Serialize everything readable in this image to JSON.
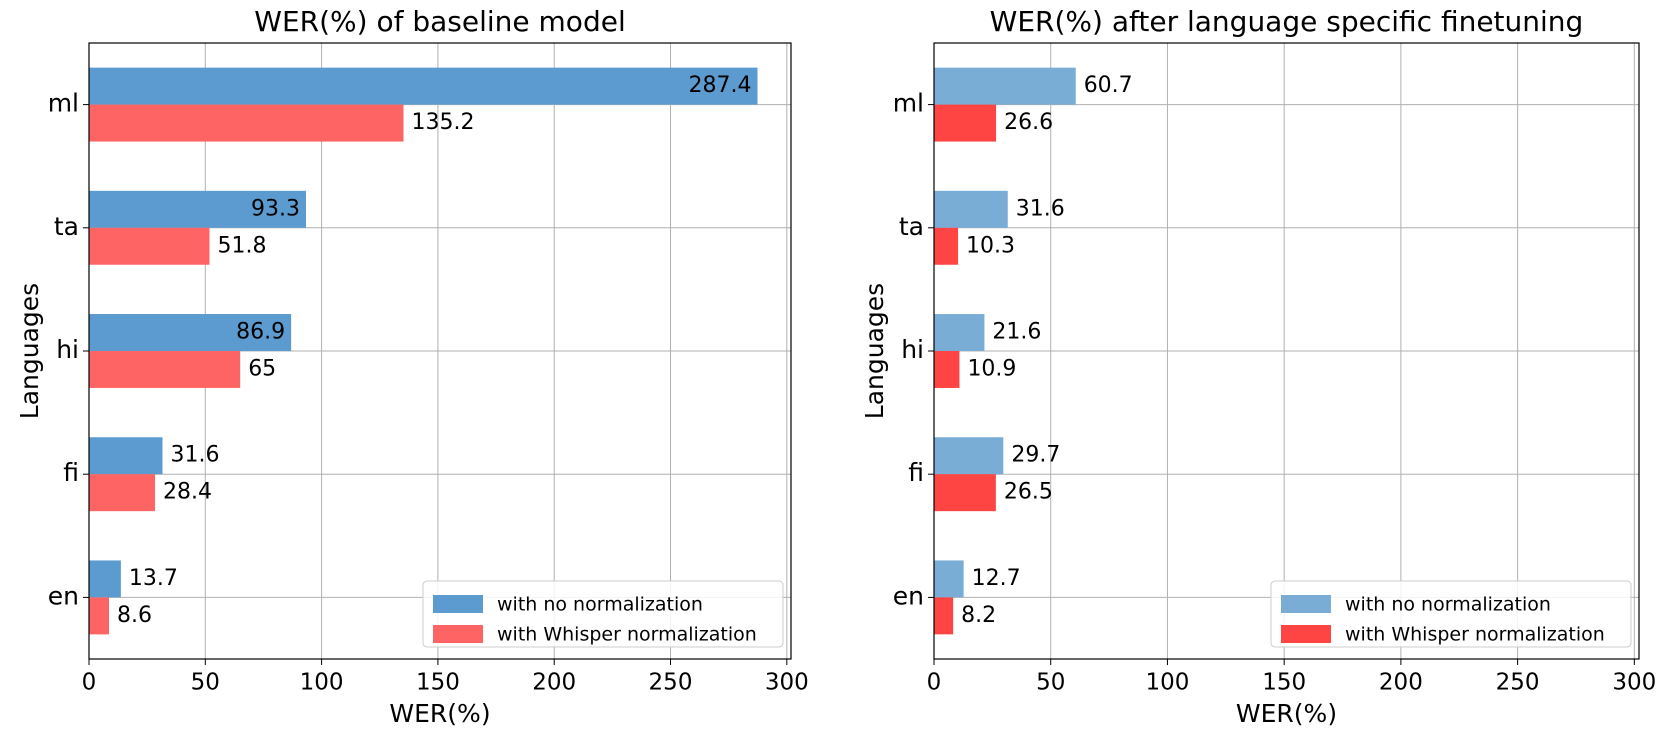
{
  "chart_data": [
    {
      "type": "bar",
      "orientation": "horizontal",
      "title": "WER(%) of baseline model",
      "xlabel": "WER(%)",
      "ylabel": "Languages",
      "categories": [
        "en",
        "fi",
        "hi",
        "ta",
        "ml"
      ],
      "series": [
        {
          "name": "with no normalization",
          "color": "#5b9bcf",
          "values": [
            13.7,
            31.6,
            86.9,
            93.3,
            287.4
          ]
        },
        {
          "name": "with Whisper normalization",
          "color": "#ff6464",
          "values": [
            8.6,
            28.4,
            65.0,
            51.8,
            135.2
          ]
        }
      ],
      "xlim": [
        0,
        301.8
      ],
      "xticks": [
        0,
        50,
        100,
        150,
        200,
        250,
        300
      ],
      "grid": true,
      "legend": "lower right"
    },
    {
      "type": "bar",
      "orientation": "horizontal",
      "title": "WER(%) after language specific finetuning",
      "xlabel": "WER(%)",
      "ylabel": "Languages",
      "categories": [
        "en",
        "fi",
        "hi",
        "ta",
        "ml"
      ],
      "series": [
        {
          "name": "with no normalization",
          "color": "#79add6",
          "values": [
            12.7,
            29.7,
            21.6,
            31.6,
            60.7
          ]
        },
        {
          "name": "with Whisper normalization",
          "color": "#ff4444",
          "values": [
            8.2,
            26.5,
            10.9,
            10.3,
            26.6
          ]
        }
      ],
      "xlim": [
        0,
        302
      ],
      "xticks": [
        0,
        50,
        100,
        150,
        200,
        250,
        300
      ],
      "grid": true,
      "legend": "lower right"
    }
  ]
}
